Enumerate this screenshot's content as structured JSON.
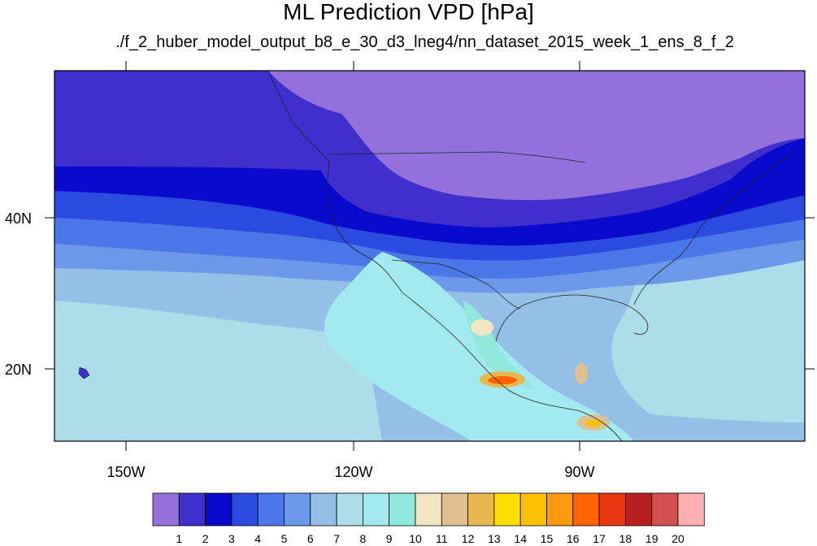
{
  "title": "ML Prediction VPD [hPa]",
  "subtitle": "./f_2_huber_model_output_b8_e_30_d3_lneg4/nn_dataset_2015_week_1_ens_8_f_2",
  "map": {
    "lat_ticks": [
      "40N",
      "20N"
    ],
    "lon_ticks": [
      "150W",
      "120W",
      "90W"
    ]
  },
  "colorbar": {
    "colors": [
      "#9370db",
      "#3f2fcc",
      "#0a0acc",
      "#2a4ae0",
      "#4a78e8",
      "#6c98ea",
      "#94bfe6",
      "#acdde8",
      "#a2eaf0",
      "#90e9dc",
      "#f3e6c2",
      "#e0c090",
      "#e8b850",
      "#fde000",
      "#ffc000",
      "#ff9a10",
      "#ff6400",
      "#e83810",
      "#b82020",
      "#d05050",
      "#ffb0b0"
    ],
    "labels": [
      "1",
      "2",
      "3",
      "4",
      "5",
      "6",
      "7",
      "8",
      "9",
      "10",
      "11",
      "12",
      "13",
      "14",
      "15",
      "16",
      "17",
      "18",
      "19",
      "20"
    ]
  }
}
